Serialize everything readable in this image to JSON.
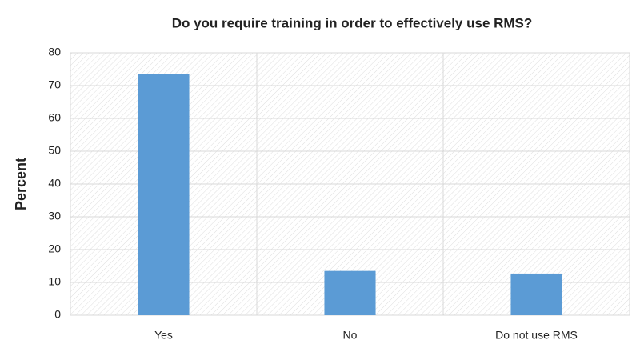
{
  "chart_data": {
    "type": "bar",
    "title": "Do you require training in order to effectively use RMS?",
    "ylabel": "Percent",
    "categories": [
      "Yes",
      "No",
      "Do not use RMS"
    ],
    "values": [
      73.6,
      13.5,
      12.7
    ],
    "color": "#5b9bd5",
    "ylim": [
      0,
      80
    ],
    "yticks": [
      0,
      10,
      20,
      30,
      40,
      50,
      60,
      70,
      80
    ],
    "grid": true
  }
}
